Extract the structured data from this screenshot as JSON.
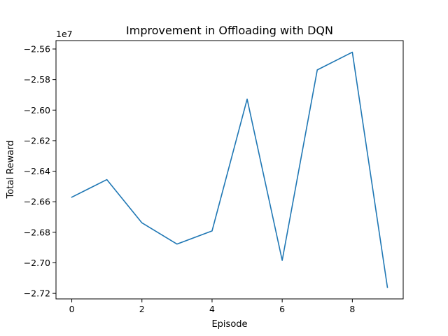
{
  "chart_data": {
    "type": "line",
    "title": "Improvement in Offloading with DQN",
    "xlabel": "Episode",
    "ylabel": "Total Reward",
    "y_offset_label": "1e7",
    "y_scale_factor": 10000000,
    "x": [
      0,
      1,
      2,
      3,
      4,
      5,
      6,
      7,
      8,
      9
    ],
    "series": [
      {
        "values": [
          -26570000,
          -26455000,
          -26738000,
          -26877000,
          -26791000,
          -25928000,
          -26984000,
          -25737000,
          -25621000,
          -27160000
        ],
        "color": "#1f77b4"
      }
    ],
    "xlim": [
      -0.45,
      9.45
    ],
    "ylim": [
      -27236000,
      -25545000
    ],
    "xticks": [
      0,
      2,
      4,
      6,
      8
    ],
    "xtick_labels": [
      "0",
      "2",
      "4",
      "6",
      "8"
    ],
    "yticks": [
      -27200000,
      -27000000,
      -26800000,
      -26600000,
      -26400000,
      -26200000,
      -26000000,
      -25800000,
      -25600000
    ],
    "ytick_labels": [
      "−2.72",
      "−2.70",
      "−2.68",
      "−2.66",
      "−2.64",
      "−2.62",
      "−2.60",
      "−2.58",
      "−2.56"
    ],
    "grid": false,
    "legend": "none"
  }
}
